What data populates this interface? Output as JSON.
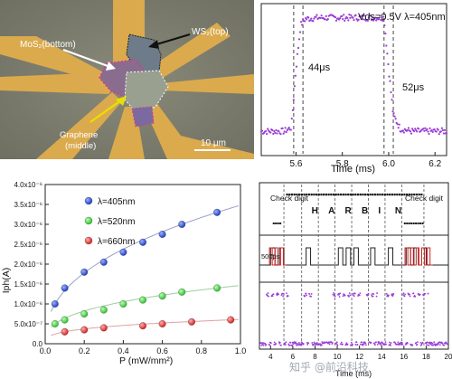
{
  "micrograph": {
    "labels": {
      "top": "WS₂(top)",
      "bottom": "MoS₂(bottom)",
      "middle_line1": "Graphene",
      "middle_line2": "(middle)"
    },
    "scale_bar": "10 μm"
  },
  "pulse_panel": {
    "annotation": "Vds=0.5V  λ=405nm",
    "rise_time": "44μs",
    "fall_time": "52μs",
    "xlabel": "Time (ms)"
  },
  "scatter_panel": {
    "series_colors": {
      "405nm": "#1f3fc4",
      "520nm": "#2fc22f",
      "660nm": "#d62020"
    }
  },
  "encoding_panel": {
    "check_left": "Check digit",
    "check_right": "Check digit",
    "letters": [
      "H",
      "A",
      "R",
      "B",
      "I",
      "N"
    ],
    "pulse_label": "500μs",
    "xlabel": "Time (ms)",
    "xticks": [
      "4",
      "6",
      "8",
      "10",
      "12",
      "14",
      "16",
      "18",
      "20"
    ]
  },
  "chart_data": [
    {
      "type": "line",
      "xlabel": "Time (ms)",
      "xlim": [
        5.45,
        6.25
      ],
      "xticks": [
        "5.6",
        "5.8",
        "6.0",
        "6.2"
      ],
      "annotations": [
        "Vds=0.5V  λ=405nm",
        "44μs",
        "52μs"
      ],
      "series": [
        {
          "x": [
            5.45,
            5.5,
            5.55,
            5.58,
            5.6,
            5.62,
            5.64,
            5.7,
            5.8,
            5.9,
            5.98,
            6.0,
            6.02,
            6.05,
            6.1,
            6.15,
            6.2,
            6.25
          ],
          "values": [
            0.05,
            0.05,
            0.05,
            0.08,
            0.55,
            0.9,
            0.95,
            0.96,
            0.96,
            0.96,
            0.96,
            0.55,
            0.18,
            0.07,
            0.05,
            0.05,
            0.05,
            0.05
          ]
        }
      ]
    },
    {
      "type": "scatter",
      "xlabel": "P (mW/mm²)",
      "ylabel": "Iph(A)",
      "xlim": [
        0.0,
        1.0
      ],
      "ylim": [
        0.0,
        4e-06
      ],
      "xticks": [
        "0.0",
        "0.2",
        "0.4",
        "0.6",
        "0.8",
        "1.0"
      ],
      "yticks": [
        "0.0",
        "5.0x10⁻⁷",
        "1.0x10⁻⁶",
        "1.5x10⁻⁶",
        "2.0x10⁻⁶",
        "2.5x10⁻⁶",
        "3.0x10⁻⁶",
        "3.5x10⁻⁶",
        "4.0x10⁻⁶"
      ],
      "legend_position": "top-left",
      "series": [
        {
          "name": "λ=405nm",
          "x": [
            0.05,
            0.1,
            0.2,
            0.3,
            0.4,
            0.5,
            0.6,
            0.7,
            0.88
          ],
          "values": [
            1e-06,
            1.4e-06,
            1.8e-06,
            2.05e-06,
            2.3e-06,
            2.55e-06,
            2.75e-06,
            3e-06,
            3.3e-06
          ]
        },
        {
          "name": "λ=520nm",
          "x": [
            0.05,
            0.1,
            0.2,
            0.3,
            0.4,
            0.5,
            0.6,
            0.7,
            0.88
          ],
          "values": [
            5e-07,
            6e-07,
            7.5e-07,
            8.5e-07,
            1e-06,
            1.1e-06,
            1.2e-06,
            1.3e-06,
            1.4e-06
          ]
        },
        {
          "name": "λ=660nm",
          "x": [
            0.1,
            0.2,
            0.3,
            0.5,
            0.6,
            0.75,
            0.95
          ],
          "values": [
            3e-07,
            3.5e-07,
            4e-07,
            4.5e-07,
            5e-07,
            5.5e-07,
            6e-07
          ]
        }
      ]
    }
  ]
}
